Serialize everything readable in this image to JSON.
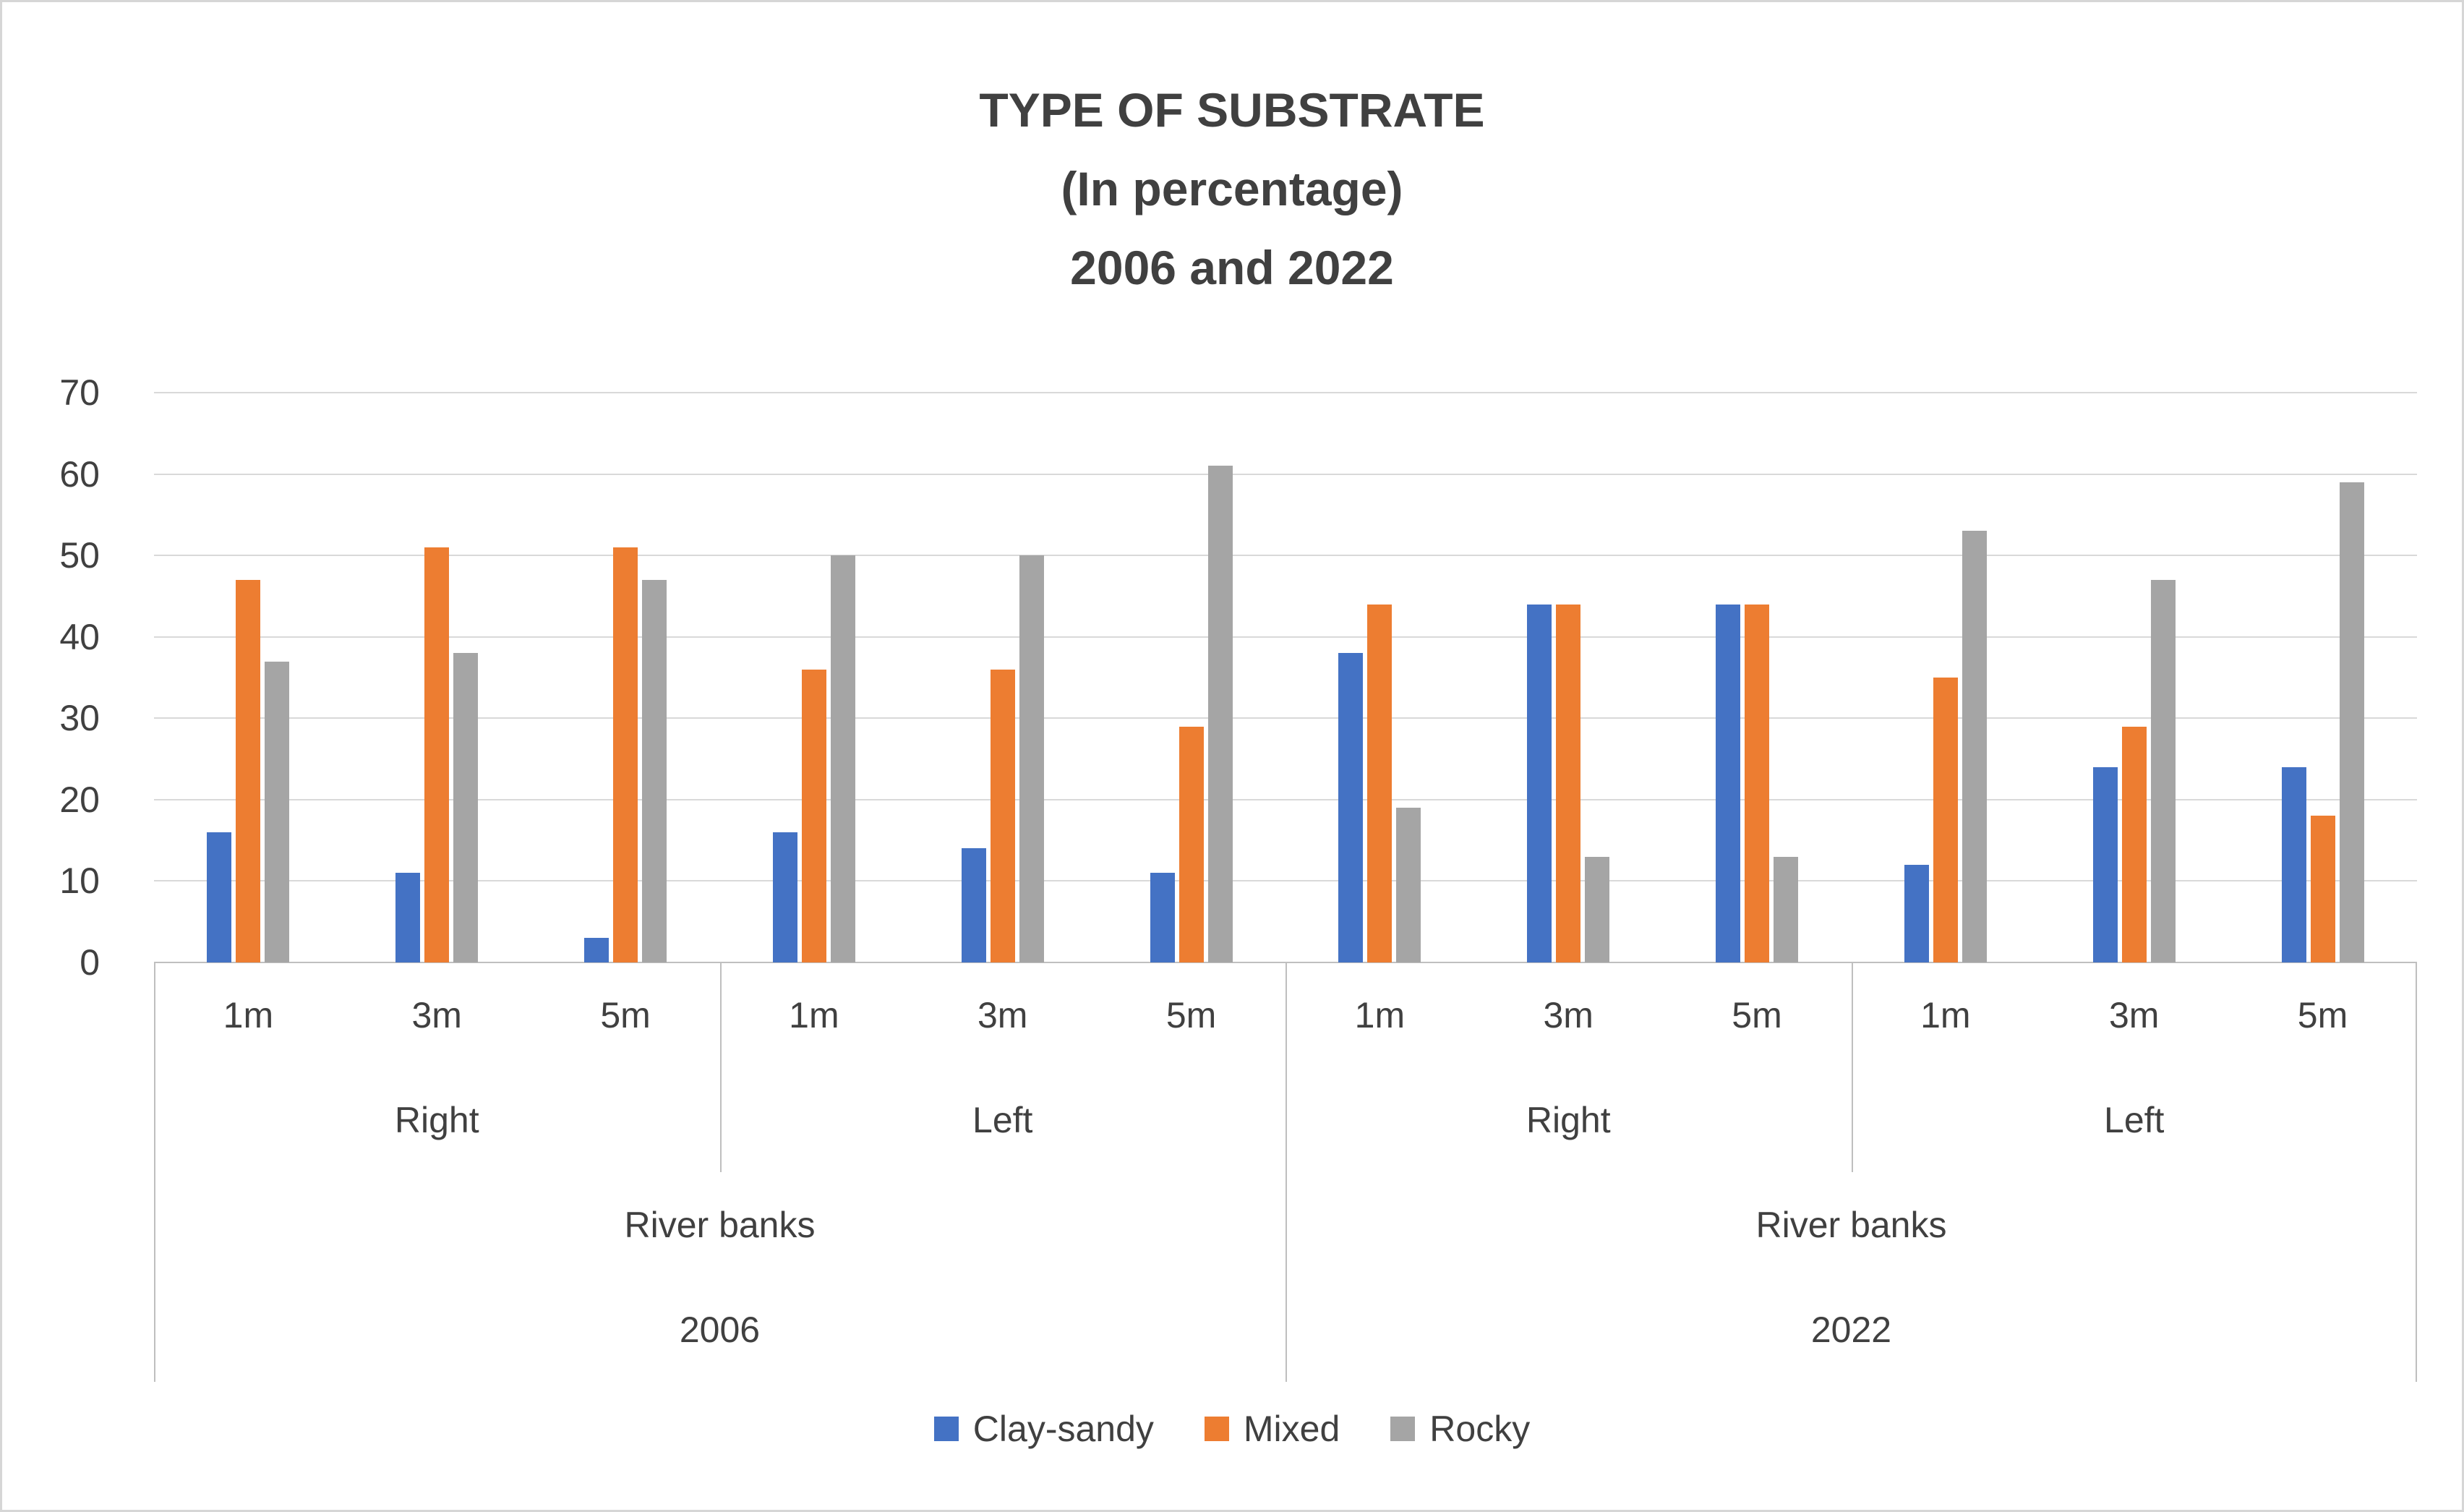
{
  "title": {
    "line1": "TYPE OF SUBSTRATE",
    "line2": "(In percentage)",
    "line3": "2006 and 2022"
  },
  "chart_data": {
    "type": "bar",
    "title": "TYPE OF SUBSTRATE (In percentage) 2006 and 2022",
    "ylim": [
      0,
      70
    ],
    "ytick_step": 10,
    "ytick_labels": [
      "0",
      "10",
      "20",
      "30",
      "40",
      "50",
      "60",
      "70"
    ],
    "grid": true,
    "legend_position": "bottom",
    "categories": [
      "1m",
      "3m",
      "5m",
      "1m",
      "3m",
      "5m",
      "1m",
      "3m",
      "5m",
      "1m",
      "3m",
      "5m"
    ],
    "axis_levels": [
      {
        "name": "depth",
        "cells": [
          {
            "label": "1m",
            "span": 1
          },
          {
            "label": "3m",
            "span": 1
          },
          {
            "label": "5m",
            "span": 1
          },
          {
            "label": "1m",
            "span": 1
          },
          {
            "label": "3m",
            "span": 1
          },
          {
            "label": "5m",
            "span": 1
          },
          {
            "label": "1m",
            "span": 1
          },
          {
            "label": "3m",
            "span": 1
          },
          {
            "label": "5m",
            "span": 1
          },
          {
            "label": "1m",
            "span": 1
          },
          {
            "label": "3m",
            "span": 1
          },
          {
            "label": "5m",
            "span": 1
          }
        ]
      },
      {
        "name": "bank-side",
        "cells": [
          {
            "label": "Right",
            "span": 3
          },
          {
            "label": "Left",
            "span": 3
          },
          {
            "label": "Right",
            "span": 3
          },
          {
            "label": "Left",
            "span": 3
          }
        ]
      },
      {
        "name": "location",
        "cells": [
          {
            "label": "River banks",
            "span": 6
          },
          {
            "label": "River banks",
            "span": 6
          }
        ]
      },
      {
        "name": "year",
        "cells": [
          {
            "label": "2006",
            "span": 6
          },
          {
            "label": "2022",
            "span": 6
          }
        ]
      }
    ],
    "series": [
      {
        "name": "Clay-sandy",
        "color": "#4472C4",
        "values": [
          16,
          11,
          3,
          16,
          14,
          11,
          38,
          44,
          44,
          12,
          24,
          24
        ]
      },
      {
        "name": "Mixed",
        "color": "#ED7D31",
        "values": [
          47,
          51,
          51,
          36,
          36,
          29,
          44,
          44,
          44,
          35,
          29,
          18
        ]
      },
      {
        "name": "Rocky",
        "color": "#A5A5A5",
        "values": [
          37,
          38,
          47,
          50,
          50,
          61,
          19,
          13,
          13,
          53,
          47,
          59
        ]
      }
    ]
  },
  "colors": {
    "grid": "#d9d9d9",
    "axis": "#bfbfbf",
    "text": "#404040"
  }
}
